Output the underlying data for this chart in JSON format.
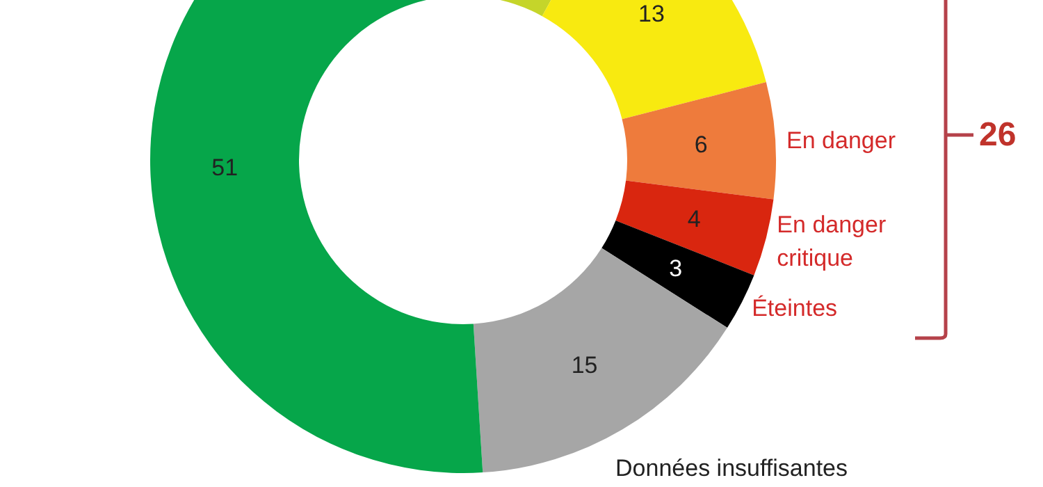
{
  "chart_data": {
    "type": "donut",
    "categories": [
      null,
      null,
      "En danger",
      "En danger critique",
      "Éteintes",
      "Données insuffisantes",
      null
    ],
    "values": [
      8,
      13,
      6,
      4,
      3,
      15,
      51
    ],
    "colors": [
      "#c5d52a",
      "#f8ea10",
      "#ee7b3c",
      "#d9260f",
      "#000000",
      "#a6a6a6",
      "#06a64a"
    ],
    "value_labels": [
      null,
      "13",
      "6",
      "4",
      "3",
      "15",
      "51"
    ],
    "annotations": [
      "26"
    ]
  }
}
